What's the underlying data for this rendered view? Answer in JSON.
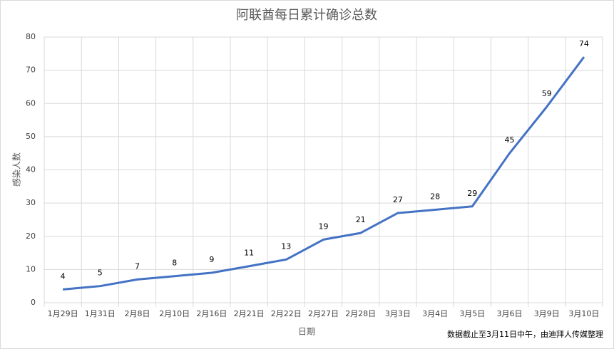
{
  "chart_data": {
    "type": "line",
    "title": "阿联酋每日累计确诊总数",
    "x_label": "日期",
    "y_label": "感染人数",
    "note": "数据截止至3月11日中午，由迪拜人传媒整理",
    "categories": [
      "1月29日",
      "1月31日",
      "2月8日",
      "2月10日",
      "2月16日",
      "2月21日",
      "2月22日",
      "2月27日",
      "2月28日",
      "3月3日",
      "3月4日",
      "3月5日",
      "3月6日",
      "3月9日",
      "3月10日"
    ],
    "values": [
      4,
      5,
      7,
      8,
      9,
      11,
      13,
      19,
      21,
      27,
      28,
      29,
      45,
      59,
      74
    ],
    "color": "#4472c4",
    "ylim": [
      0,
      80
    ],
    "yticks": [
      0,
      10,
      20,
      30,
      40,
      50,
      60,
      70,
      80
    ],
    "grid": true
  }
}
